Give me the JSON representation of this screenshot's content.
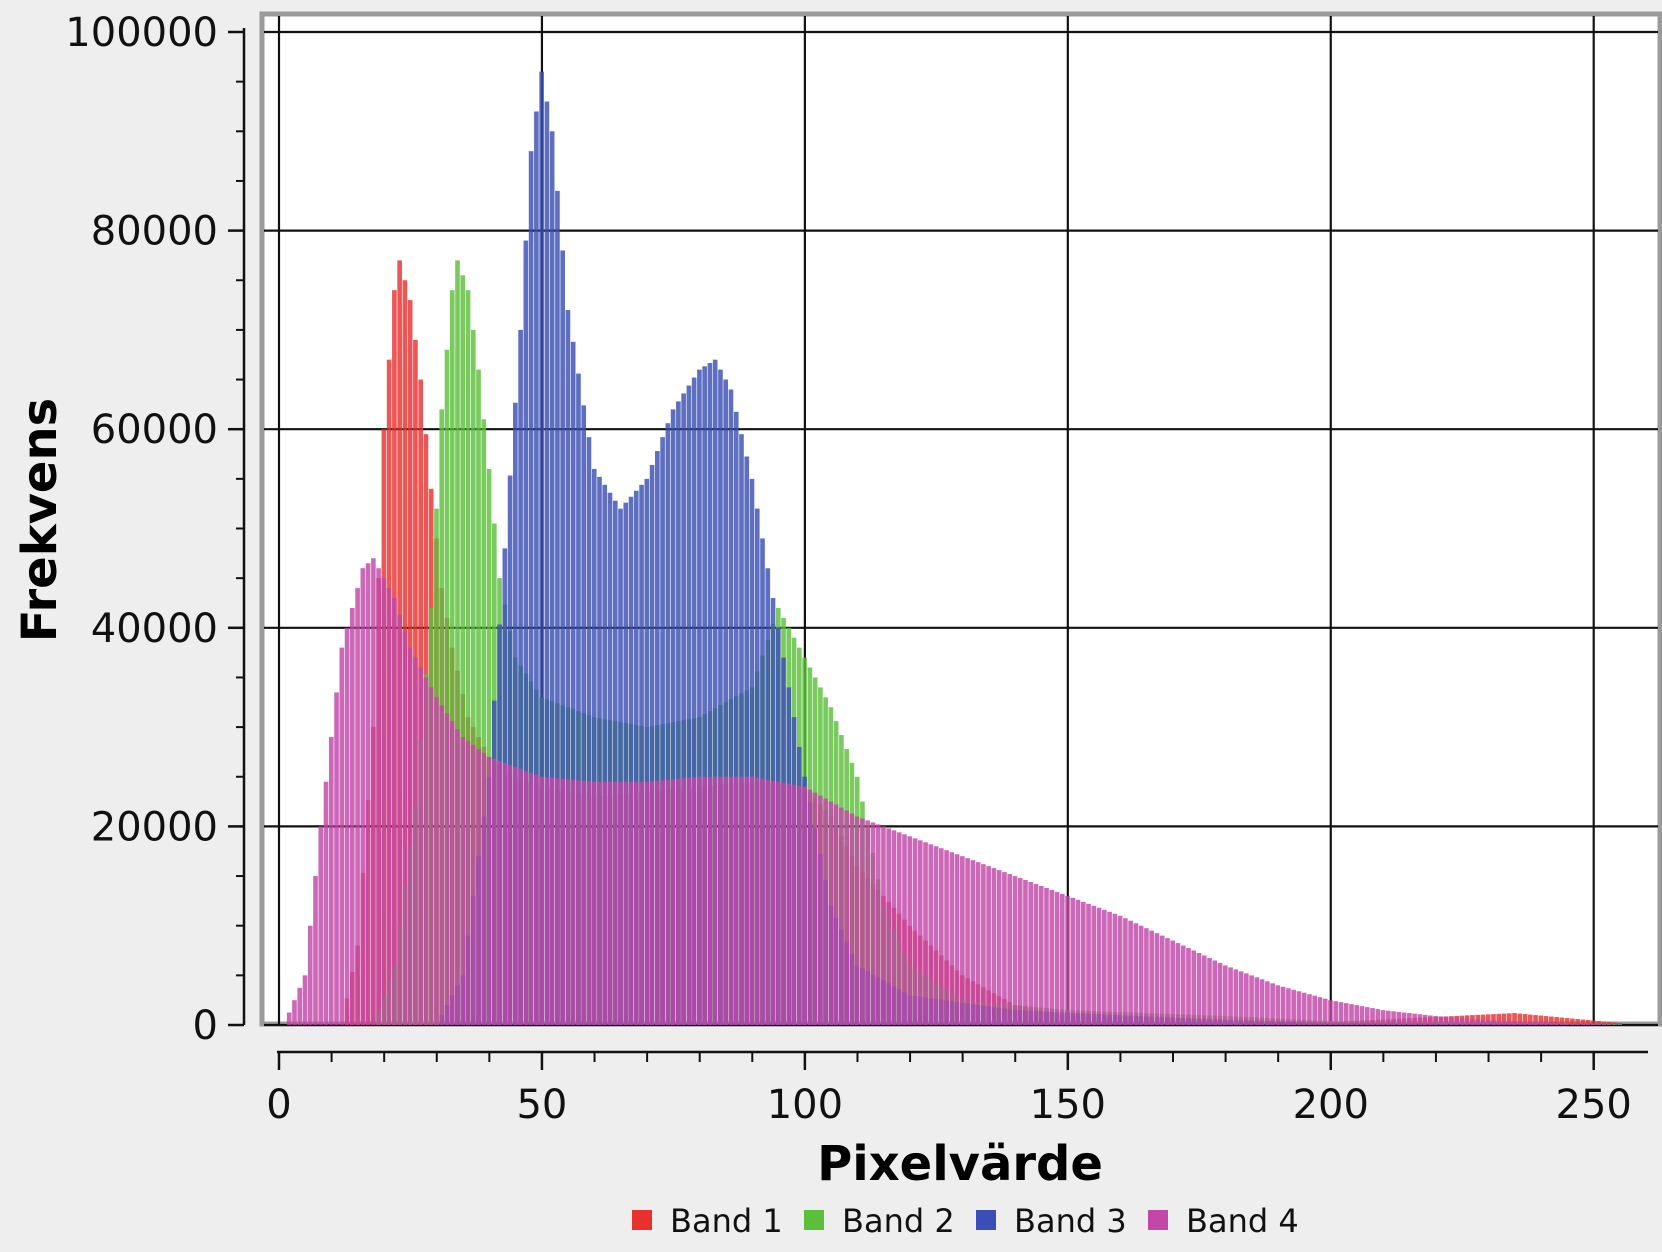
{
  "chart_data": {
    "type": "bar",
    "xlabel": "Pixelvärde",
    "ylabel": "Frekvens",
    "xlim": [
      0,
      255
    ],
    "ylim": [
      0,
      100000
    ],
    "xticks": [
      "0",
      "50",
      "100",
      "150",
      "200",
      "250"
    ],
    "yticks": [
      "0",
      "20000",
      "40000",
      "60000",
      "80000",
      "100000"
    ],
    "grid": true,
    "legend_position": "bottom",
    "series": [
      {
        "name": "Band 1",
        "color": "#e8312f",
        "points": [
          [
            12,
            0
          ],
          [
            15,
            8000
          ],
          [
            18,
            30000
          ],
          [
            20,
            60000
          ],
          [
            22,
            74000
          ],
          [
            23,
            77000
          ],
          [
            25,
            73000
          ],
          [
            27,
            65000
          ],
          [
            29,
            54000
          ],
          [
            31,
            44000
          ],
          [
            33,
            38000
          ],
          [
            36,
            31000
          ],
          [
            40,
            27000
          ],
          [
            45,
            25000
          ],
          [
            50,
            24000
          ],
          [
            60,
            23000
          ],
          [
            70,
            23500
          ],
          [
            80,
            24000
          ],
          [
            90,
            24500
          ],
          [
            100,
            24000
          ],
          [
            105,
            21000
          ],
          [
            110,
            16000
          ],
          [
            120,
            10000
          ],
          [
            130,
            5000
          ],
          [
            140,
            2000
          ],
          [
            150,
            900
          ],
          [
            180,
            600
          ],
          [
            200,
            300
          ],
          [
            235,
            1200
          ],
          [
            255,
            200
          ]
        ]
      },
      {
        "name": "Band 2",
        "color": "#5cbf3a",
        "points": [
          [
            18,
            0
          ],
          [
            22,
            6000
          ],
          [
            26,
            22000
          ],
          [
            29,
            42000
          ],
          [
            31,
            62000
          ],
          [
            33,
            74000
          ],
          [
            34,
            77000
          ],
          [
            36,
            74000
          ],
          [
            38,
            66000
          ],
          [
            40,
            56000
          ],
          [
            42,
            45000
          ],
          [
            45,
            37000
          ],
          [
            50,
            33000
          ],
          [
            60,
            31000
          ],
          [
            70,
            30000
          ],
          [
            80,
            31000
          ],
          [
            90,
            34000
          ],
          [
            95,
            42000
          ],
          [
            100,
            37000
          ],
          [
            105,
            32000
          ],
          [
            110,
            25000
          ],
          [
            112,
            20000
          ],
          [
            115,
            12000
          ],
          [
            120,
            6000
          ],
          [
            130,
            2500
          ],
          [
            150,
            1500
          ],
          [
            180,
            900
          ],
          [
            200,
            400
          ],
          [
            255,
            100
          ]
        ]
      },
      {
        "name": "Band 3",
        "color": "#3a4fb5",
        "points": [
          [
            30,
            0
          ],
          [
            35,
            5000
          ],
          [
            40,
            25000
          ],
          [
            43,
            48000
          ],
          [
            46,
            70000
          ],
          [
            48,
            88000
          ],
          [
            50,
            96000
          ],
          [
            52,
            90000
          ],
          [
            55,
            72000
          ],
          [
            60,
            56000
          ],
          [
            65,
            52000
          ],
          [
            70,
            55000
          ],
          [
            75,
            62000
          ],
          [
            80,
            66000
          ],
          [
            83,
            67000
          ],
          [
            86,
            64000
          ],
          [
            90,
            55000
          ],
          [
            95,
            40000
          ],
          [
            100,
            25000
          ],
          [
            105,
            12000
          ],
          [
            110,
            6000
          ],
          [
            120,
            3000
          ],
          [
            140,
            1500
          ],
          [
            160,
            1000
          ],
          [
            180,
            500
          ],
          [
            200,
            200
          ],
          [
            255,
            50
          ]
        ]
      },
      {
        "name": "Band 4",
        "color": "#c247a8",
        "points": [
          [
            1,
            0
          ],
          [
            5,
            5000
          ],
          [
            8,
            20000
          ],
          [
            12,
            38000
          ],
          [
            16,
            46000
          ],
          [
            18,
            47000
          ],
          [
            22,
            43000
          ],
          [
            25,
            38000
          ],
          [
            30,
            33000
          ],
          [
            35,
            29000
          ],
          [
            40,
            27000
          ],
          [
            45,
            26000
          ],
          [
            50,
            25000
          ],
          [
            60,
            24500
          ],
          [
            70,
            24500
          ],
          [
            80,
            25000
          ],
          [
            90,
            25000
          ],
          [
            100,
            24000
          ],
          [
            110,
            21000
          ],
          [
            120,
            19000
          ],
          [
            130,
            17000
          ],
          [
            140,
            15000
          ],
          [
            150,
            13000
          ],
          [
            160,
            11000
          ],
          [
            170,
            8500
          ],
          [
            180,
            6000
          ],
          [
            190,
            4000
          ],
          [
            200,
            2500
          ],
          [
            210,
            1500
          ],
          [
            220,
            900
          ],
          [
            230,
            500
          ],
          [
            245,
            200
          ],
          [
            255,
            0
          ]
        ]
      }
    ]
  }
}
